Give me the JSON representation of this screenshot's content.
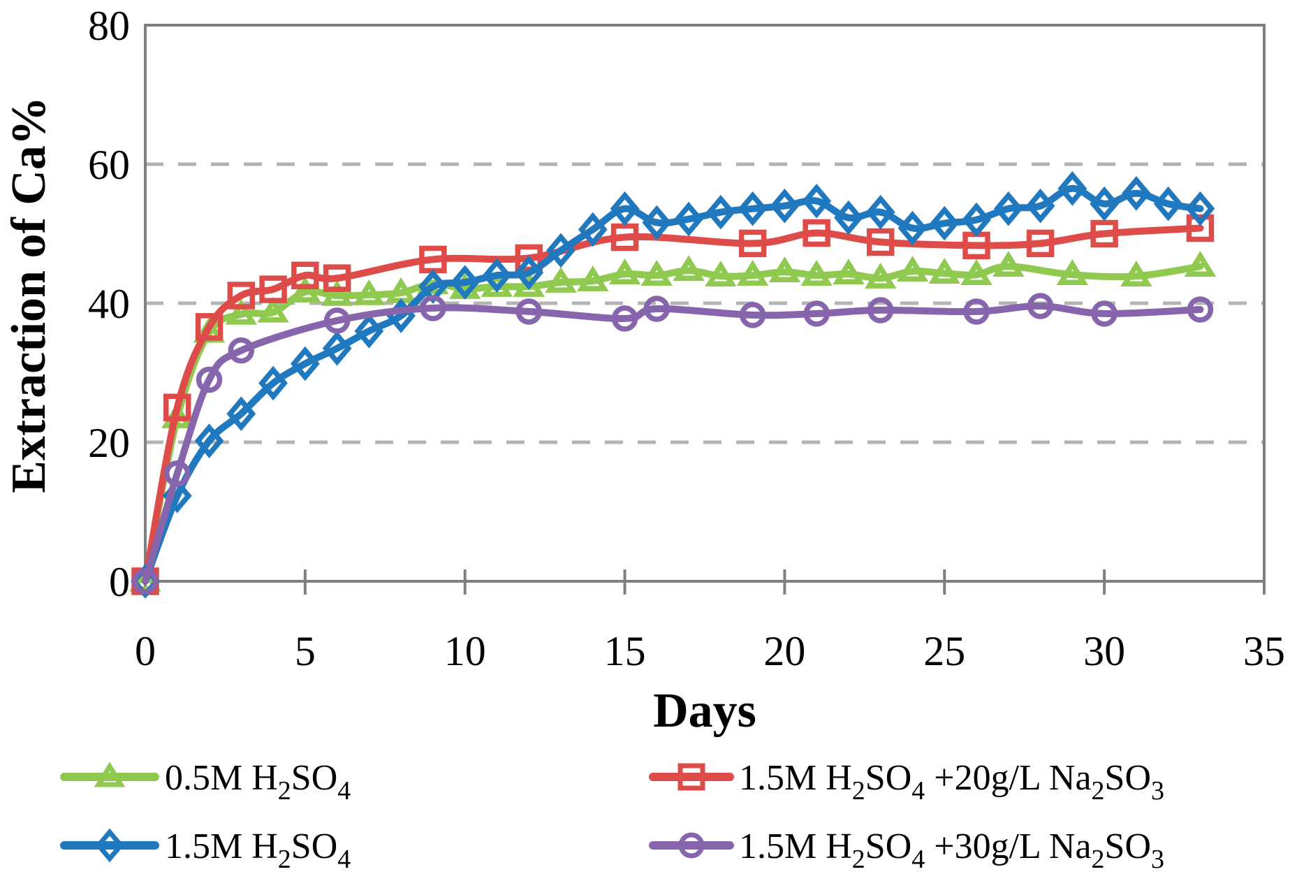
{
  "chart_data": {
    "type": "line",
    "title": "",
    "xlabel": "Days",
    "ylabel": "Extraction of Ca%",
    "xlim": [
      0,
      35
    ],
    "ylim": [
      0,
      80
    ],
    "xticks": [
      0,
      5,
      10,
      15,
      20,
      25,
      30,
      35
    ],
    "yticks": [
      0,
      20,
      40,
      60,
      80
    ],
    "gridline_values": [
      20,
      40,
      60
    ],
    "grid": "horizontal-dashed",
    "smoothed": true,
    "legend_position": "bottom-two-columns",
    "colors": {
      "axis": "#7f7f7f",
      "gridline": "#b3b3b3",
      "text": "#000000"
    },
    "series": [
      {
        "name": "0.5M H2SO4",
        "label_parts": [
          [
            "t",
            "0.5M H"
          ],
          [
            "s",
            "2"
          ],
          [
            "t",
            "SO"
          ],
          [
            "s",
            "4"
          ]
        ],
        "color": "#8fc94f",
        "marker": "triangle",
        "x": [
          0,
          1,
          2,
          3,
          4,
          5,
          6,
          7,
          8,
          9,
          10,
          11,
          12,
          13,
          14,
          15,
          16,
          17,
          18,
          19,
          20,
          21,
          22,
          23,
          24,
          25,
          26,
          27,
          29,
          31,
          33
        ],
        "y": [
          0,
          23.5,
          35.8,
          38.4,
          38.7,
          41.6,
          41.1,
          41.2,
          41.5,
          42.8,
          42.1,
          42.4,
          42.4,
          43.0,
          43.2,
          44.2,
          44.0,
          44.7,
          43.9,
          44.0,
          44.5,
          44.0,
          44.2,
          43.6,
          44.6,
          44.3,
          44.1,
          45.3,
          44.1,
          43.9,
          45.3
        ]
      },
      {
        "name": "1.5M H2SO4 +20g/L Na2SO3",
        "label_parts": [
          [
            "t",
            "1.5M H"
          ],
          [
            "s",
            "2"
          ],
          [
            "t",
            "SO"
          ],
          [
            "s",
            "4"
          ],
          [
            "t",
            " +20g/L Na"
          ],
          [
            "s",
            "2"
          ],
          [
            "t",
            "SO"
          ],
          [
            "s",
            "3"
          ]
        ],
        "color": "#de4c49",
        "marker": "square",
        "x": [
          0,
          1,
          2,
          3,
          4,
          5,
          6,
          9,
          12,
          15,
          19,
          21,
          23,
          26,
          28,
          30,
          33
        ],
        "y": [
          0,
          25.0,
          36.6,
          41.1,
          42.0,
          44.0,
          43.6,
          46.3,
          46.5,
          49.5,
          48.6,
          50.1,
          48.8,
          48.3,
          48.6,
          50.0,
          50.8
        ]
      },
      {
        "name": "1.5M H2SO4",
        "label_parts": [
          [
            "t",
            "1.5M H"
          ],
          [
            "s",
            "2"
          ],
          [
            "t",
            "SO"
          ],
          [
            "s",
            "4"
          ]
        ],
        "color": "#2079bf",
        "marker": "diamond",
        "x": [
          0,
          1,
          2,
          3,
          4,
          5,
          6,
          7,
          8,
          9,
          10,
          11,
          12,
          13,
          14,
          15,
          16,
          17,
          18,
          19,
          20,
          21,
          22,
          23,
          24,
          25,
          26,
          27,
          28,
          29,
          30,
          31,
          32,
          33
        ],
        "y": [
          0,
          12.3,
          20.2,
          24.1,
          28.5,
          31.3,
          33.5,
          36.0,
          38.2,
          42.4,
          43.0,
          44.0,
          44.4,
          47.6,
          50.6,
          53.6,
          51.6,
          52.1,
          53.1,
          53.6,
          54.0,
          54.7,
          52.3,
          53.1,
          50.8,
          51.5,
          52.0,
          53.6,
          54.0,
          56.5,
          54.3,
          55.8,
          54.3,
          53.6
        ]
      },
      {
        "name": "1.5M H2SO4 +30g/L Na2SO3",
        "label_parts": [
          [
            "t",
            "1.5M H"
          ],
          [
            "s",
            "2"
          ],
          [
            "t",
            "SO"
          ],
          [
            "s",
            "4"
          ],
          [
            "t",
            " +30g/L Na"
          ],
          [
            "s",
            "2"
          ],
          [
            "t",
            "SO"
          ],
          [
            "s",
            "3"
          ]
        ],
        "color": "#8765ac",
        "marker": "circle",
        "x": [
          0,
          1,
          2,
          3,
          6,
          9,
          12,
          15,
          16,
          19,
          21,
          23,
          26,
          28,
          30,
          33
        ],
        "y": [
          0,
          15.5,
          29.0,
          33.2,
          37.5,
          39.3,
          38.8,
          37.8,
          39.2,
          38.3,
          38.5,
          39.0,
          38.8,
          39.6,
          38.5,
          39.1
        ]
      }
    ],
    "legend_layout": {
      "columns": [
        {
          "entries_series_index": [
            0,
            2
          ]
        },
        {
          "entries_series_index": [
            1,
            3
          ]
        }
      ]
    }
  }
}
